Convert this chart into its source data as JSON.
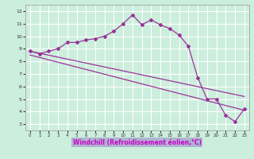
{
  "line1_x": [
    0,
    1,
    2,
    3,
    4,
    5,
    6,
    7,
    8,
    9,
    10,
    11,
    12,
    13,
    14,
    15,
    16,
    17,
    18,
    19,
    20,
    21,
    22,
    23
  ],
  "line1_y": [
    8.8,
    8.6,
    8.8,
    9.0,
    9.5,
    9.5,
    9.7,
    9.8,
    10.0,
    10.4,
    11.0,
    11.7,
    10.9,
    11.3,
    10.9,
    10.6,
    10.1,
    9.2,
    6.7,
    5.0,
    5.0,
    3.7,
    3.2,
    4.2
  ],
  "line2_x": [
    0,
    23
  ],
  "line2_y": [
    8.8,
    5.2
  ],
  "line3_x": [
    0,
    23
  ],
  "line3_y": [
    8.5,
    4.1
  ],
  "line_color": "#993399",
  "marker": "D",
  "markersize": 2.0,
  "linewidth": 0.9,
  "bg_color": "#cceedd",
  "grid_color": "#ffffff",
  "ylabel_values": [
    3,
    4,
    5,
    6,
    7,
    8,
    9,
    10,
    11,
    12
  ],
  "xlabel_values": [
    0,
    1,
    2,
    3,
    4,
    5,
    6,
    7,
    8,
    9,
    10,
    11,
    12,
    13,
    14,
    15,
    16,
    17,
    18,
    19,
    20,
    21,
    22,
    23
  ],
  "xlabel": "Windchill (Refroidissement éolien,°C)",
  "xlabel_color": "#6600aa",
  "xlabel_bg": "#aaaadd",
  "ylim": [
    2.5,
    12.5
  ],
  "xlim": [
    -0.5,
    23.5
  ]
}
